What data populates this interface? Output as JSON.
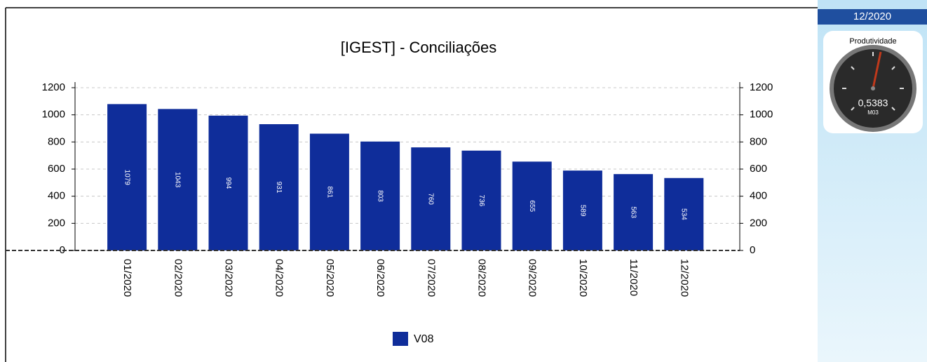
{
  "chart_data": {
    "type": "bar",
    "title": "[IGEST]  - Conciliações",
    "categories": [
      "01/2020",
      "02/2020",
      "03/2020",
      "04/2020",
      "05/2020",
      "06/2020",
      "07/2020",
      "08/2020",
      "09/2020",
      "10/2020",
      "11/2020",
      "12/2020"
    ],
    "series": [
      {
        "name": "V08",
        "color": "#0f2d9a",
        "values": [
          1079,
          1043,
          994,
          931,
          861,
          803,
          760,
          736,
          655,
          589,
          563,
          534
        ]
      }
    ],
    "ylim": [
      0,
      1200
    ],
    "yticks": [
      0,
      200,
      400,
      600,
      800,
      1000,
      1200
    ],
    "grid": true
  },
  "side_panel": {
    "period": "12/2020",
    "gauge": {
      "title": "Produtividade",
      "value_text": "0,5383",
      "code": "M03"
    }
  }
}
